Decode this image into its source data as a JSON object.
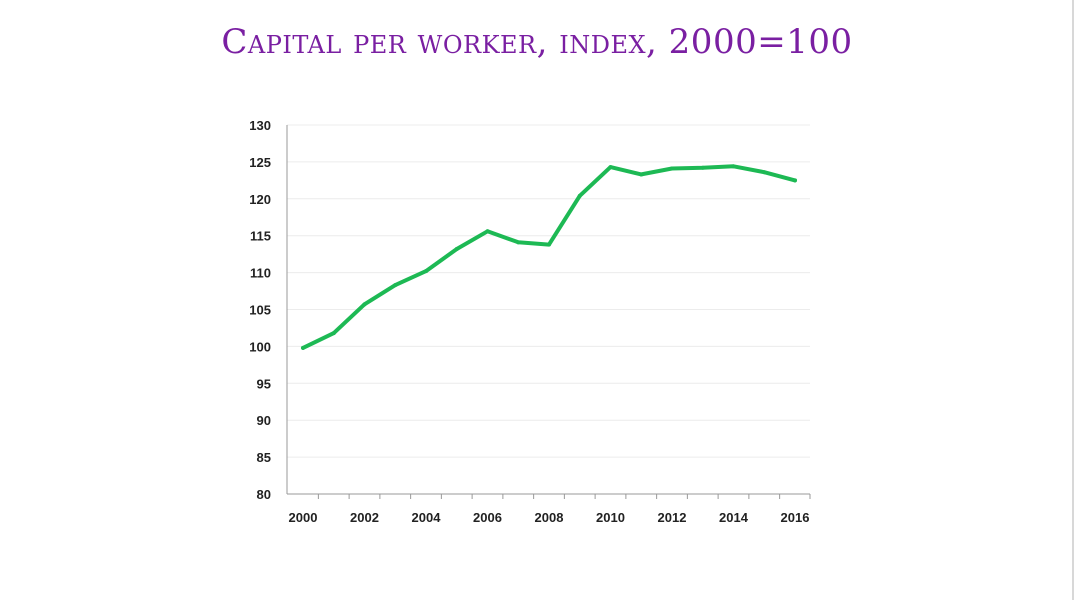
{
  "slide": {
    "title": "Capital per worker, index, 2000=100"
  },
  "chart_data": {
    "type": "line",
    "title": "Capital per worker, index, 2000=100",
    "xlabel": "",
    "ylabel": "",
    "x": [
      2000,
      2001,
      2002,
      2003,
      2004,
      2005,
      2006,
      2007,
      2008,
      2009,
      2010,
      2011,
      2012,
      2013,
      2014,
      2015,
      2016
    ],
    "series": [
      {
        "values": [
          99.8,
          101.8,
          105.7,
          108.3,
          110.2,
          113.2,
          115.6,
          114.1,
          113.8,
          120.4,
          124.3,
          123.3,
          124.1,
          124.2,
          124.4,
          123.6,
          122.5
        ]
      }
    ],
    "ylim": [
      80,
      130
    ],
    "yticks": [
      80,
      85,
      90,
      95,
      100,
      105,
      110,
      115,
      120,
      125,
      130
    ],
    "xtick_labels": [
      2000,
      2002,
      2004,
      2006,
      2008,
      2010,
      2012,
      2014,
      2016
    ],
    "grid": true,
    "legend": "none",
    "colors": {
      "line": "#1db954",
      "grid": "#ececec",
      "axis": "#999999"
    }
  }
}
